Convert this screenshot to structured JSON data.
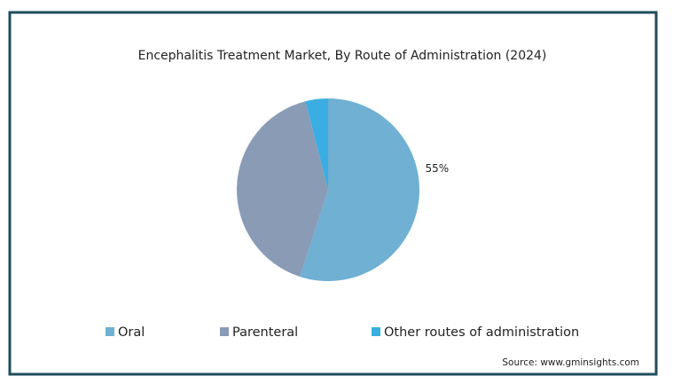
{
  "chart_data": {
    "type": "pie",
    "title": "Encephalitis Treatment Market, By Route of Administration (2024)",
    "categories": [
      "Oral",
      "Parenteral",
      "Other routes of administration"
    ],
    "values": [
      55,
      41,
      4
    ],
    "value_labels": [
      "55%",
      null,
      null
    ],
    "colors": [
      "#6fb0d3",
      "#8a9bb6",
      "#3aaee2"
    ],
    "legend": "bottom",
    "source": "Source: www.gminsights.com"
  }
}
